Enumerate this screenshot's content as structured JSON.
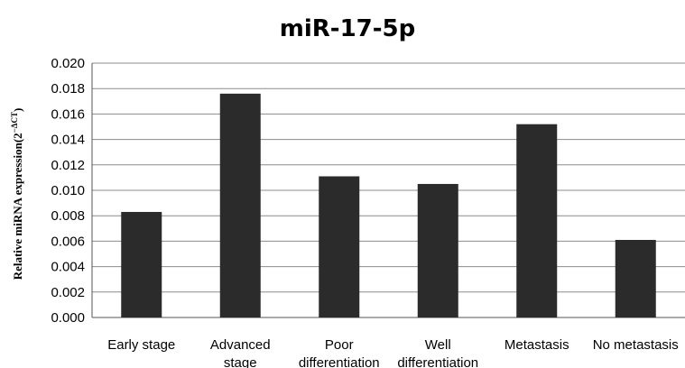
{
  "chart_data": {
    "type": "bar",
    "title": "miR-17-5p",
    "xlabel": "",
    "ylabel": "Relative miRNA expression(2",
    "ylabel_sup": "−ΔCT",
    "ylabel_close": ")",
    "categories": [
      [
        "Early stage"
      ],
      [
        "Advanced",
        "stage"
      ],
      [
        "Poor",
        "differentiation"
      ],
      [
        "Well",
        "differentiation"
      ],
      [
        "Metastasis"
      ],
      [
        "No metastasis"
      ]
    ],
    "values": [
      0.0083,
      0.0176,
      0.0111,
      0.0105,
      0.0152,
      0.0061
    ],
    "ylim": [
      0,
      0.02
    ],
    "yticks": [
      "0.000",
      "0.002",
      "0.004",
      "0.006",
      "0.008",
      "0.010",
      "0.012",
      "0.014",
      "0.016",
      "0.018",
      "0.020"
    ],
    "grid": true,
    "bar_color": "#2b2b2b",
    "grid_color": "#8c8c8c"
  }
}
